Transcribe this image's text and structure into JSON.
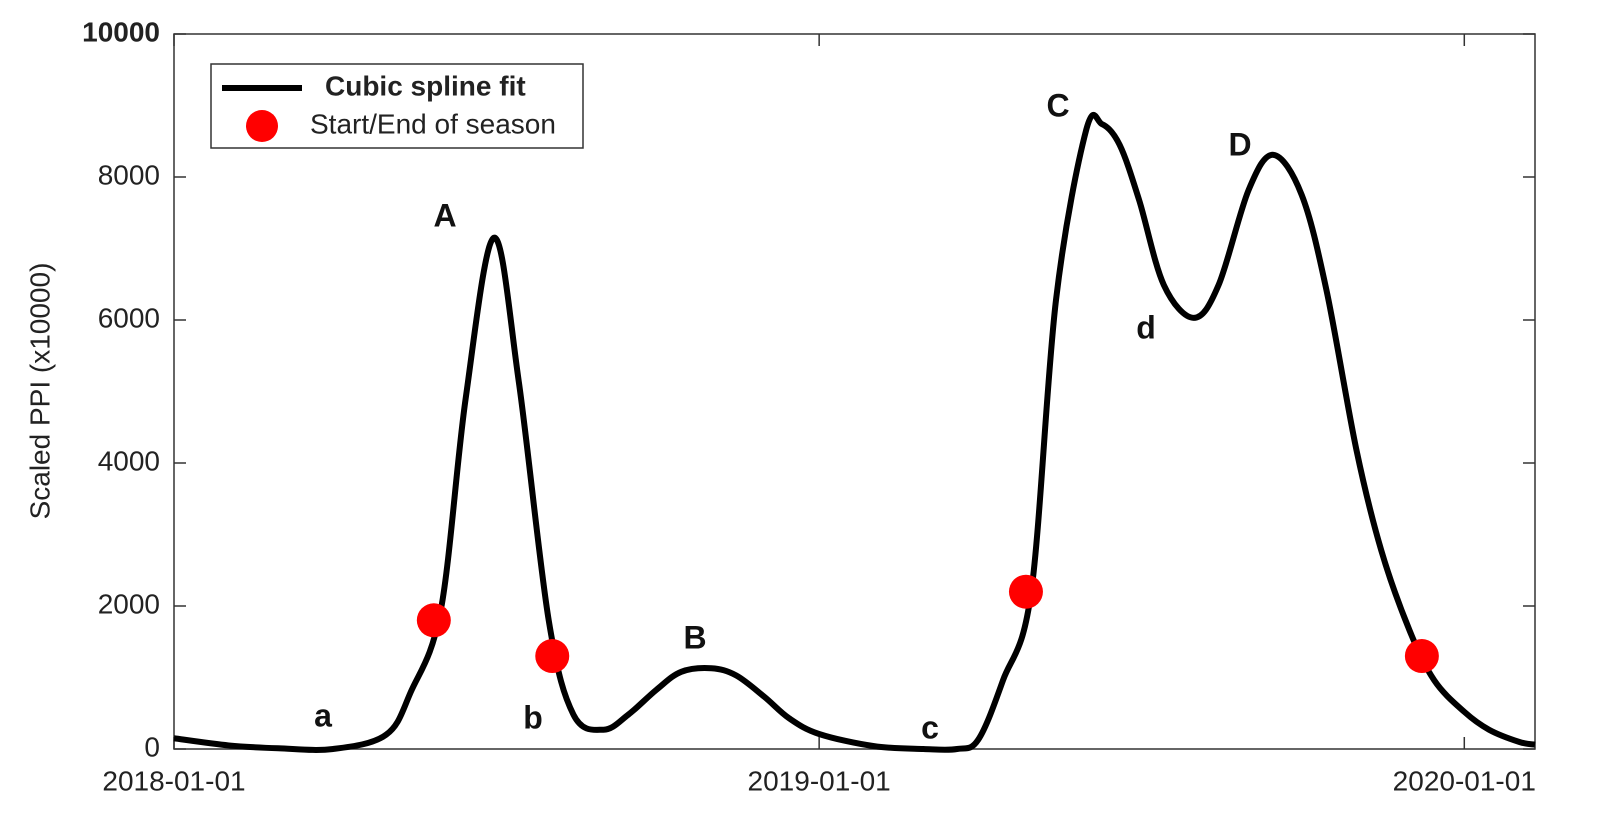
{
  "chart_data": {
    "type": "line",
    "ylabel": "Scaled PPI (x10000)",
    "xlim": [
      "2018-01-01",
      "2020-02-10"
    ],
    "xticks": [
      "2018-01-01",
      "2019-01-01",
      "2020-01-01"
    ],
    "ylim": [
      0,
      10000
    ],
    "yticks": [
      0,
      2000,
      4000,
      6000,
      8000,
      10000
    ],
    "legend": "upper left",
    "series": [
      {
        "name": "Cubic spline fit",
        "color": "#000000",
        "type": "line",
        "x": [
          "2018-01-01",
          "2018-02-01",
          "2018-03-01",
          "2018-04-01",
          "2018-05-01",
          "2018-05-15",
          "2018-06-01",
          "2018-06-15",
          "2018-07-01",
          "2018-07-15",
          "2018-08-01",
          "2018-08-15",
          "2018-09-01",
          "2018-09-15",
          "2018-10-01",
          "2018-10-15",
          "2018-11-01",
          "2018-11-15",
          "2018-12-01",
          "2018-12-15",
          "2019-01-01",
          "2019-02-01",
          "2019-03-01",
          "2019-03-20",
          "2019-04-01",
          "2019-04-15",
          "2019-05-01",
          "2019-05-15",
          "2019-06-01",
          "2019-06-10",
          "2019-06-20",
          "2019-07-01",
          "2019-07-15",
          "2019-08-01",
          "2019-08-15",
          "2019-09-01",
          "2019-09-15",
          "2019-10-01",
          "2019-10-15",
          "2019-11-01",
          "2019-11-15",
          "2019-12-01",
          "2019-12-15",
          "2020-01-01",
          "2020-01-15",
          "2020-02-01",
          "2020-02-10"
        ],
        "values": [
          150,
          50,
          10,
          0,
          200,
          800,
          1950,
          4900,
          7150,
          5150,
          1800,
          480,
          270,
          480,
          830,
          1080,
          1130,
          1030,
          730,
          430,
          210,
          40,
          0,
          0,
          130,
          960,
          2200,
          6280,
          8650,
          8740,
          8450,
          7680,
          6490,
          6030,
          6490,
          7820,
          8310,
          7750,
          6420,
          4180,
          2780,
          1660,
          960,
          520,
          270,
          100,
          60
        ]
      },
      {
        "name": "Start/End of season",
        "color": "#ff0000",
        "type": "scatter",
        "x": [
          "2018-05-28",
          "2018-08-03",
          "2019-04-28",
          "2019-12-08"
        ],
        "values": [
          1800,
          1300,
          2200,
          1300
        ]
      }
    ],
    "annotations": [
      "A",
      "B",
      "C",
      "D",
      "a",
      "b",
      "c",
      "d"
    ]
  }
}
